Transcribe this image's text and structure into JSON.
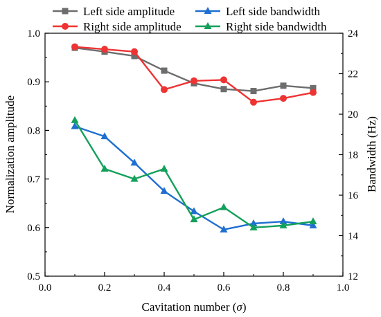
{
  "chart_data": {
    "type": "line",
    "xlabel_main": "Cavitation number (",
    "xlabel_symbol": "σ",
    "xlabel_close": ")",
    "ylabel_left": "Normalization amplitude",
    "ylabel_right": "Bandwidth (Hz)",
    "xlim": [
      0.0,
      1.0
    ],
    "ylim_left": [
      0.5,
      1.0
    ],
    "ylim_right": [
      12,
      24
    ],
    "x_ticks": [
      "0.0",
      "0.2",
      "0.4",
      "0.6",
      "0.8",
      "1.0"
    ],
    "y_left_ticks": [
      "0.5",
      "0.6",
      "0.7",
      "0.8",
      "0.9",
      "1.0"
    ],
    "y_right_ticks": [
      "12",
      "14",
      "16",
      "18",
      "20",
      "22",
      "24"
    ],
    "x": [
      0.1,
      0.2,
      0.3,
      0.4,
      0.5,
      0.6,
      0.7,
      0.8,
      0.9
    ],
    "grid": false,
    "legend_position": "top",
    "series": [
      {
        "name": "Left side amplitude",
        "axis": "left",
        "marker": "square",
        "color": "#6d6d6d",
        "values": [
          0.97,
          0.962,
          0.953,
          0.923,
          0.897,
          0.885,
          0.881,
          0.892,
          0.887
        ]
      },
      {
        "name": "Right side amplitude",
        "axis": "left",
        "marker": "circle",
        "color": "#ee3333",
        "values": [
          0.972,
          0.967,
          0.962,
          0.884,
          0.902,
          0.904,
          0.858,
          0.866,
          0.878
        ]
      },
      {
        "name": "Left side bandwidth",
        "axis": "right",
        "marker": "triangle",
        "color": "#1f6fd0",
        "values": [
          19.4,
          18.9,
          17.6,
          16.2,
          15.2,
          14.3,
          14.6,
          14.7,
          14.5
        ]
      },
      {
        "name": "Right side bandwidth",
        "axis": "right",
        "marker": "triangle",
        "color": "#13a05a",
        "values": [
          19.7,
          17.3,
          16.8,
          17.3,
          14.8,
          15.4,
          14.4,
          14.5,
          14.7
        ]
      }
    ]
  }
}
